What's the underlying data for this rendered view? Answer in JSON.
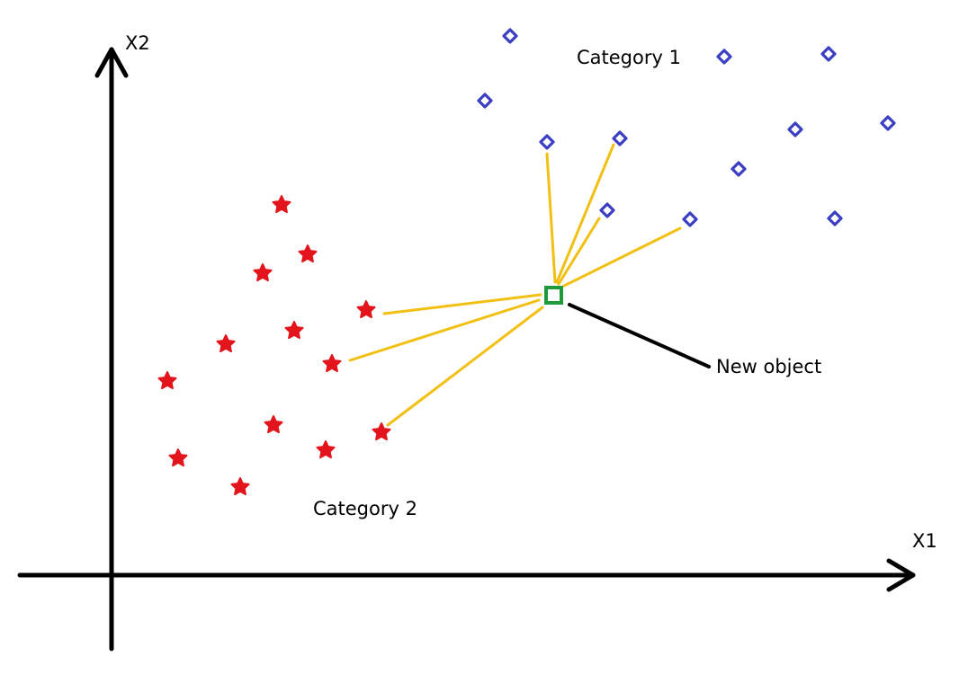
{
  "labels": {
    "x_axis": "X1",
    "y_axis": "X2",
    "category_1": "Category 1",
    "category_2": "Category 2",
    "new_object": "New object"
  },
  "colors": {
    "axis": "#000000",
    "category_1": "#3b3fc4",
    "category_2": "#e3141c",
    "new_object": "#1e9a3c",
    "neighbor_lines": "#f2c012",
    "pointer": "#000000"
  },
  "icons": {
    "category_1_marker": "diamond-icon",
    "category_2_marker": "star-icon",
    "new_object_marker": "square-icon"
  }
}
